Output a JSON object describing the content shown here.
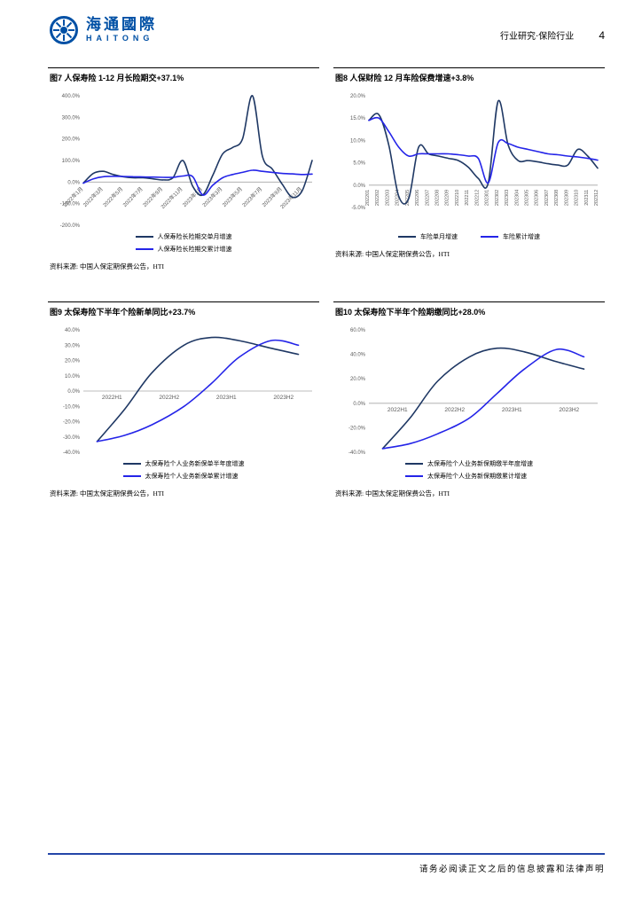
{
  "header": {
    "logo_cn": "海通國際",
    "logo_en": "HAITONG",
    "section": "行业研究·保险行业",
    "page_number": "4"
  },
  "footer": {
    "disclaimer": "请务必阅读正文之后的信息披露和法律声明"
  },
  "colors": {
    "navy": "#1F3864",
    "blue": "#2424E8",
    "logo_blue": "#0050A5",
    "footer_line": "#2446A8",
    "axis_text": "#595959"
  },
  "charts": [
    {
      "id": "fig7",
      "title": "图7  人保寿险 1-12 月长险期交+37.1%",
      "source": "资料来源: 中国人保定期保费公告，HTI",
      "type": "line",
      "h": 160,
      "mb": 6,
      "ylim": [
        -200,
        400
      ],
      "yticks": [
        400,
        300,
        200,
        100,
        0,
        -100,
        -200
      ],
      "xmode": "ticks",
      "xstep": 2,
      "rot": -45,
      "categories": [
        "2022年1月",
        "2022年2月",
        "2022年3月",
        "2022年4月",
        "2022年5月",
        "2022年6月",
        "2022年7月",
        "2022年8月",
        "2022年9月",
        "2022年10月",
        "2022年11月",
        "2022年12月",
        "2023年1月",
        "2023年2月",
        "2023年3月",
        "2023年4月",
        "2023年5月",
        "2023年6月",
        "2023年7月",
        "2023年8月",
        "2023年9月",
        "2023年10月",
        "2023年11月",
        "2023年12月"
      ],
      "legend_layout": "stack",
      "series": [
        {
          "name": "人保寿险长险期交单月增速",
          "color": "#1F3864",
          "values": [
            -5,
            40,
            50,
            35,
            25,
            20,
            20,
            15,
            10,
            20,
            100,
            -20,
            -60,
            30,
            130,
            160,
            200,
            400,
            120,
            60,
            -10,
            -70,
            -40,
            100
          ]
        },
        {
          "name": "人保寿险长险期交累计增速",
          "color": "#2424E8",
          "values": [
            -5,
            15,
            25,
            27,
            26,
            25,
            24,
            23,
            22,
            22,
            28,
            25,
            -60,
            -15,
            20,
            35,
            45,
            55,
            50,
            45,
            40,
            38,
            35,
            37.1
          ]
        }
      ]
    },
    {
      "id": "fig8",
      "title": "图8  人保财险 12 月车险保费增速+3.8%",
      "source": "资料来源: 中国人保定期保费公告，HTI",
      "type": "line",
      "h": 160,
      "mb": 26,
      "ylim": [
        -5,
        20
      ],
      "yticks": [
        20,
        15,
        10,
        5,
        0,
        -5
      ],
      "xmode": "ticks",
      "xstep": 1,
      "rot": -90,
      "categories": [
        "202201",
        "202202",
        "202203",
        "202204",
        "202205",
        "202206",
        "202207",
        "202208",
        "202209",
        "202210",
        "202211",
        "202212",
        "202301",
        "202302",
        "202303",
        "202304",
        "202305",
        "202306",
        "202307",
        "202308",
        "202309",
        "202310",
        "202311",
        "202312"
      ],
      "legend_layout": "row",
      "series": [
        {
          "name": "车险单月增速",
          "color": "#1F3864",
          "values": [
            14.5,
            15.8,
            9,
            -2.5,
            -3,
            8.5,
            7,
            6.5,
            6,
            5.5,
            4,
            1.5,
            0.5,
            18.8,
            9,
            5.5,
            5.5,
            5.2,
            4.8,
            4.5,
            4.5,
            8,
            6.5,
            3.8
          ]
        },
        {
          "name": "车险累计增速",
          "color": "#2424E8",
          "values": [
            14.5,
            15,
            12,
            8.5,
            6.5,
            7,
            7,
            7,
            7,
            6.8,
            6.5,
            6,
            0.5,
            9.5,
            9.3,
            8.5,
            8,
            7.5,
            7,
            6.8,
            6.5,
            6.3,
            6,
            5.6
          ]
        }
      ]
    },
    {
      "id": "fig9",
      "title": "图9  太保寿险下半年个险新单同比+23.7%",
      "source": "资料来源: 中国太保定期保费公告，HTI",
      "type": "line",
      "h": 152,
      "mb": 6,
      "ylim": [
        -40,
        40
      ],
      "yticks": [
        40,
        30,
        20,
        10,
        0,
        -10,
        -20,
        -30,
        -40
      ],
      "xmode": "slots",
      "categories": [
        "2022H1",
        "2022H2",
        "2023H1",
        "2023H2"
      ],
      "legend_layout": "stack",
      "series": [
        {
          "name": "太保寿险个人业务新保单半年度增速",
          "color": "#1F3864",
          "x_norm": [
            0.06,
            0.18,
            0.3,
            0.44,
            0.56,
            0.68,
            0.82,
            0.94
          ],
          "values": [
            -33,
            -12,
            12,
            30,
            35,
            33,
            28,
            24
          ]
        },
        {
          "name": "太保寿险个人业务新保单累计增速",
          "color": "#2424E8",
          "x_norm": [
            0.06,
            0.18,
            0.3,
            0.44,
            0.56,
            0.68,
            0.82,
            0.94
          ],
          "values": [
            -33,
            -29,
            -22,
            -10,
            5,
            22,
            33,
            30
          ]
        }
      ]
    },
    {
      "id": "fig10",
      "title": "图10 太保寿险下半年个险期缴同比+28.0%",
      "source": "资料来源: 中国太保定期保费公告，HTI",
      "type": "line",
      "h": 152,
      "mb": 6,
      "ylim": [
        -40,
        60
      ],
      "yticks": [
        60,
        40,
        20,
        0,
        -20,
        -40
      ],
      "xmode": "slots",
      "categories": [
        "2022H1",
        "2022H2",
        "2023H1",
        "2023H2"
      ],
      "legend_layout": "stack",
      "series": [
        {
          "name": "太保寿险个人业务新保期缴半年度增速",
          "color": "#1F3864",
          "x_norm": [
            0.06,
            0.18,
            0.3,
            0.44,
            0.56,
            0.68,
            0.82,
            0.94
          ],
          "values": [
            -37,
            -12,
            18,
            38,
            45,
            42,
            34,
            28
          ]
        },
        {
          "name": "太保寿险个人业务新保期缴累计增速",
          "color": "#2424E8",
          "x_norm": [
            0.06,
            0.18,
            0.3,
            0.44,
            0.56,
            0.68,
            0.82,
            0.94
          ],
          "values": [
            -37,
            -33,
            -25,
            -12,
            8,
            28,
            44,
            38
          ]
        }
      ]
    }
  ]
}
